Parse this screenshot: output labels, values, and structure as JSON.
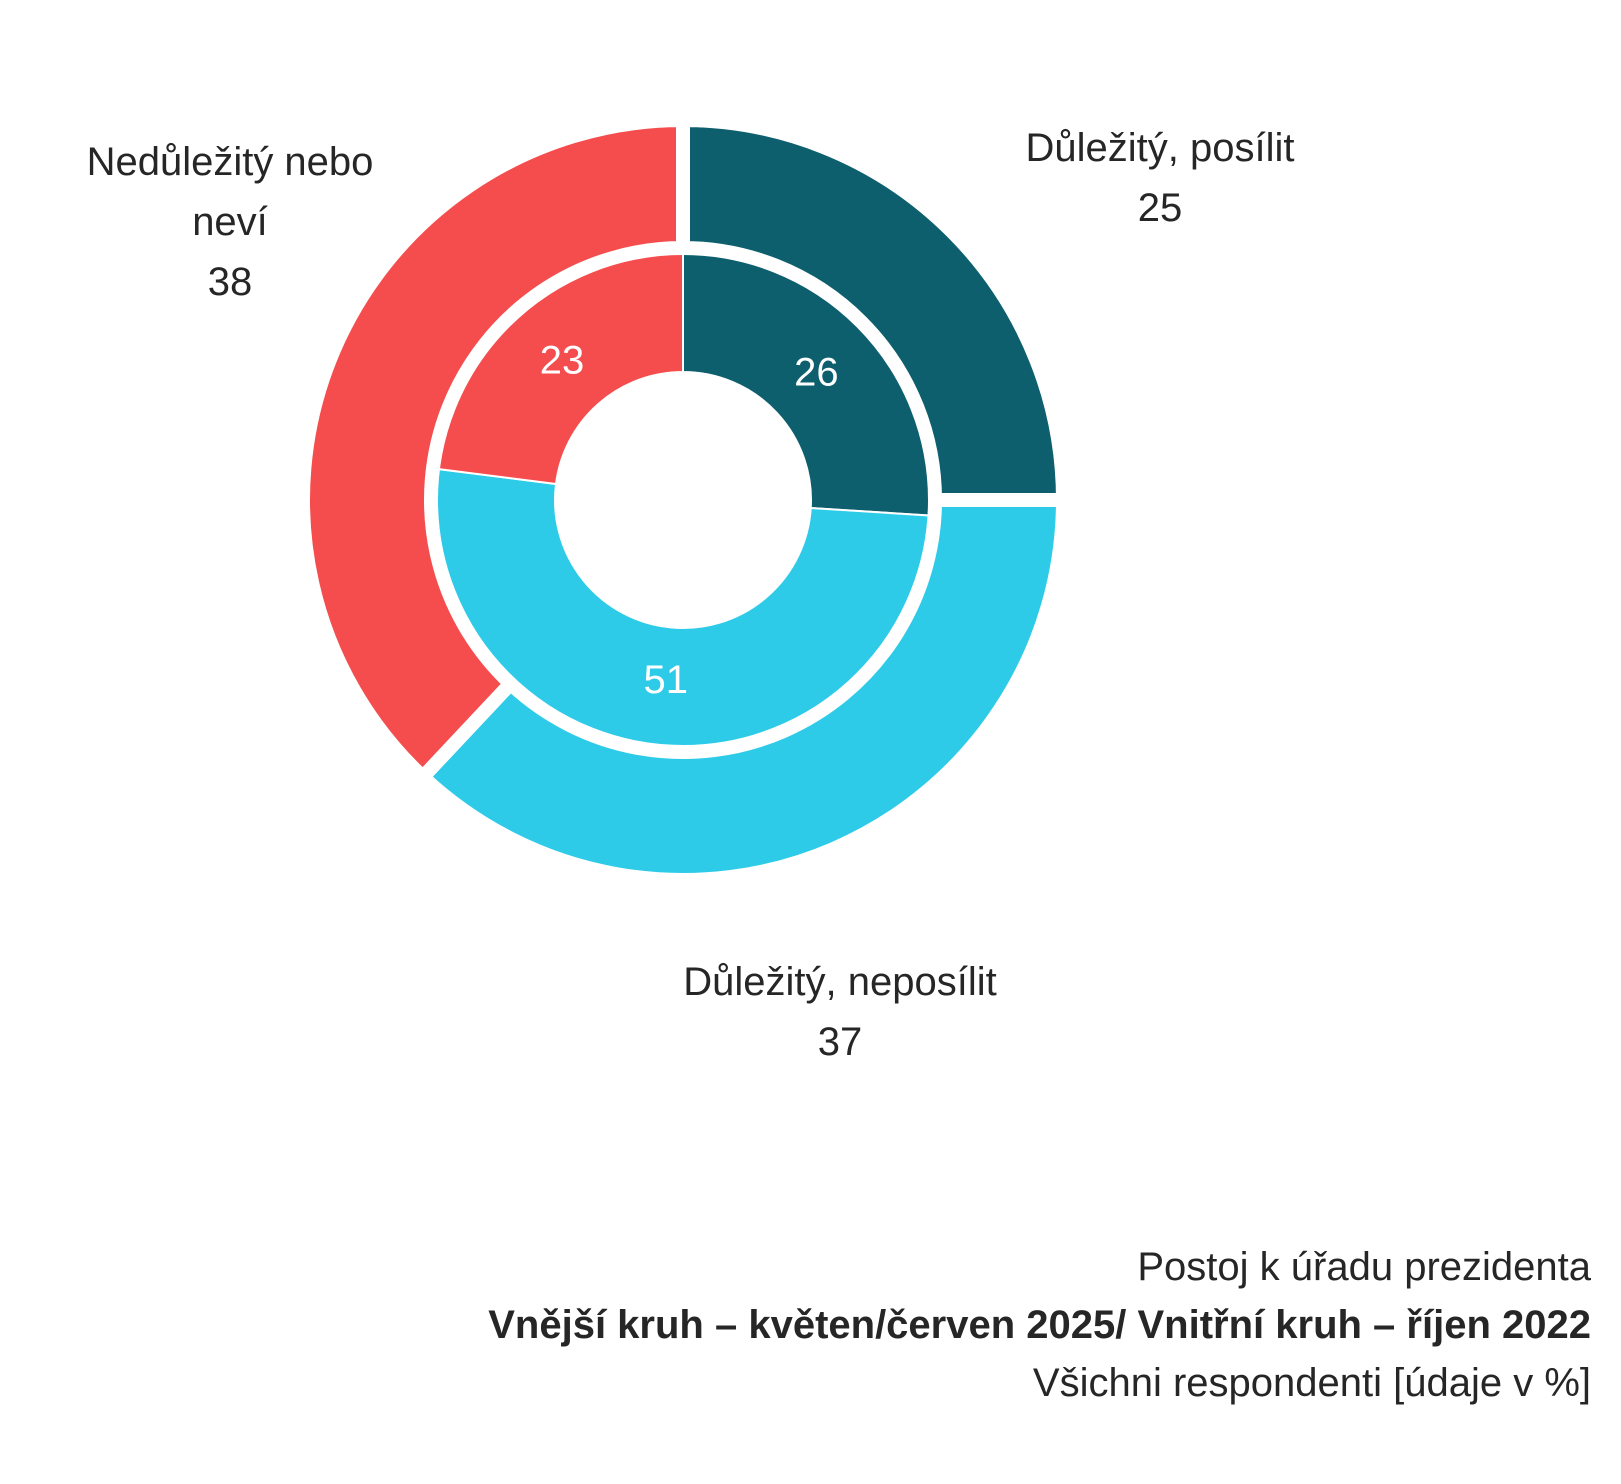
{
  "chart_data": {
    "type": "pie",
    "variant": "nested-donut",
    "rings": [
      {
        "name": "Vnější kruh – květen/červen 2025",
        "position": "outer",
        "slices": [
          {
            "label": "Důležitý, posílit",
            "value": 25,
            "color": "#0d5f6e"
          },
          {
            "label": "Důležitý, neposílit",
            "value": 37,
            "color": "#2ecbe8"
          },
          {
            "label": "Nedůležitý nebo neví",
            "value": 38,
            "color": "#f54d4d"
          }
        ]
      },
      {
        "name": "Vnitřní kruh – říjen 2022",
        "position": "inner",
        "slices": [
          {
            "label": "Důležitý, posílit",
            "value": 26,
            "color": "#0d5f6e"
          },
          {
            "label": "Důležitý, neposílit",
            "value": 51,
            "color": "#2ecbe8"
          },
          {
            "label": "Nedůležitý nebo neví",
            "value": 23,
            "color": "#f54d4d"
          }
        ]
      }
    ],
    "labels": {
      "top_left": {
        "lines": [
          "Nedůležitý nebo",
          "neví"
        ],
        "value": "38"
      },
      "top_right": {
        "lines": [
          "Důležitý, posílit"
        ],
        "value": "25"
      },
      "bottom": {
        "lines": [
          "Důležitý, neposílit"
        ],
        "value": "37"
      }
    }
  },
  "notes": {
    "title": "Postoj k úřadu prezidenta",
    "subtitle": "Vnější kruh – květen/červen 2025/ Vnitřní kruh – říjen 2022",
    "base": "Všichni respondenti [údaje v %]"
  }
}
